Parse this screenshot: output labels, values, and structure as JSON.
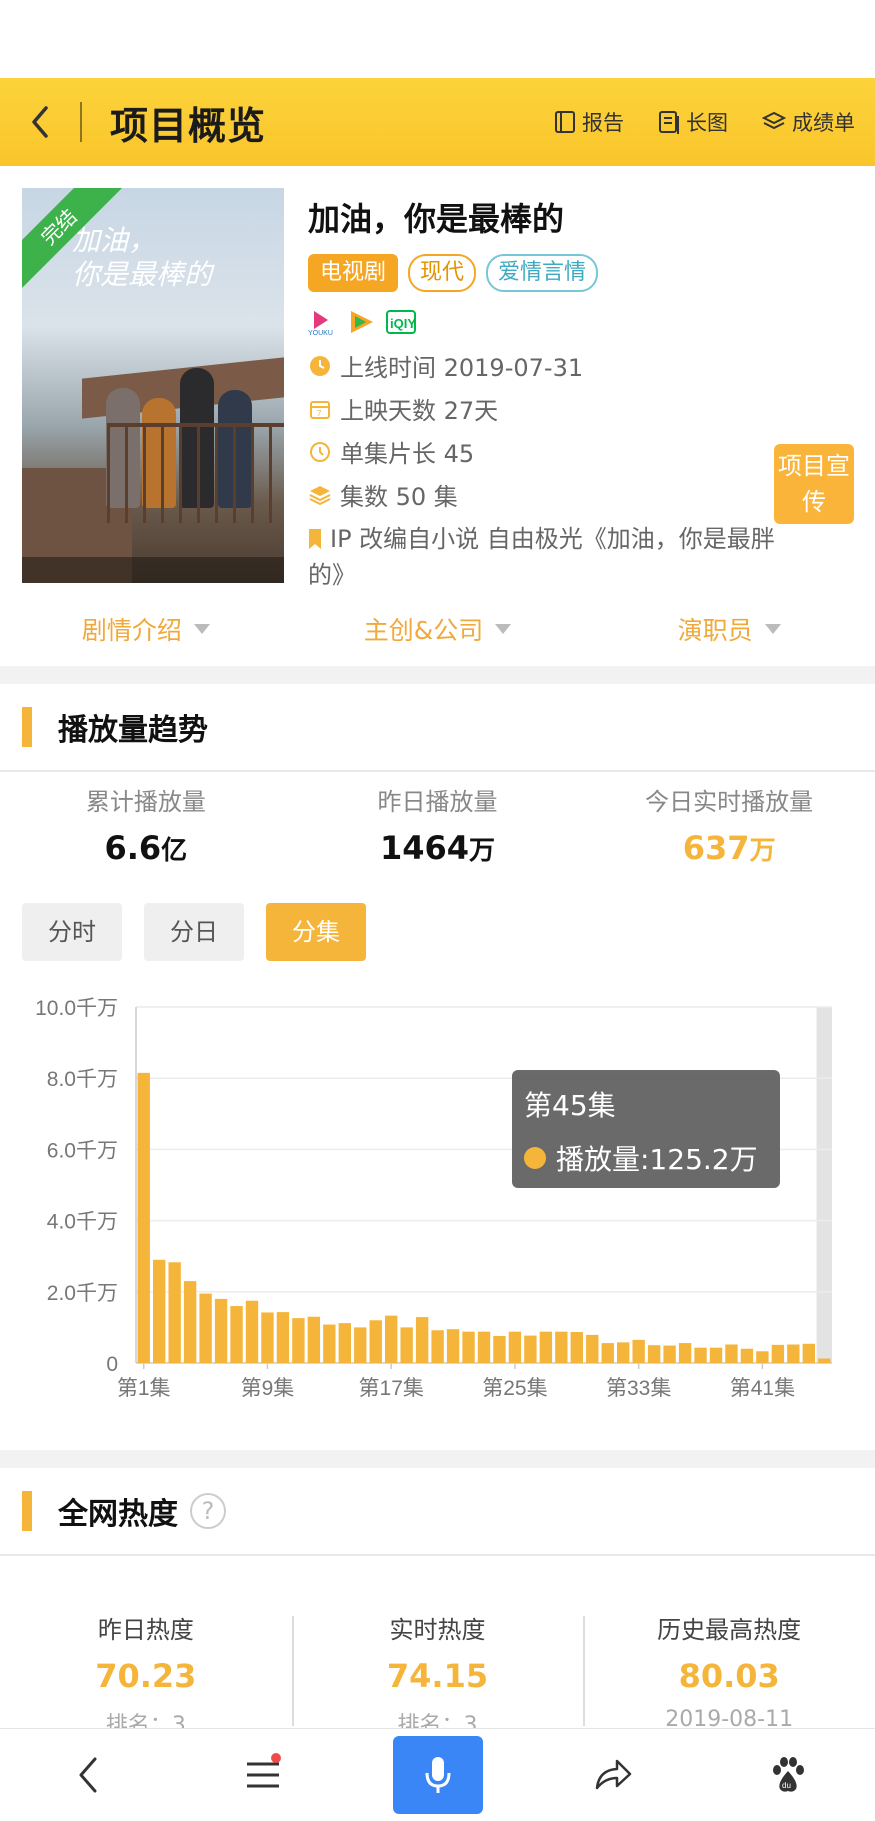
{
  "header": {
    "title": "项目概览",
    "actions": [
      {
        "label": "报告",
        "icon": "report-icon"
      },
      {
        "label": "长图",
        "icon": "long-image-icon"
      },
      {
        "label": "成绩单",
        "icon": "transcript-icon"
      }
    ]
  },
  "project": {
    "status_ribbon": "完结",
    "name": "加油，你是最棒的",
    "tags": [
      "电视剧",
      "现代",
      "爱情言情"
    ],
    "platforms": [
      "youku",
      "tencent-video",
      "iqiyi"
    ],
    "release": "上线时间 2019-07-31",
    "days": "上映天数 27天",
    "duration": "单集片长 45",
    "episodes": "集数 50 集",
    "ip": "IP 改编自小说 自由极光《加油，你是最胖的》",
    "promo": "项目宣传",
    "expanders": [
      "剧情介绍",
      "主创&公司",
      "演职员"
    ]
  },
  "playback": {
    "section_title": "播放量趋势",
    "stats": [
      {
        "label": "累计播放量",
        "value": "6.6",
        "unit": "亿"
      },
      {
        "label": "昨日播放量",
        "value": "1464",
        "unit": "万"
      },
      {
        "label": "今日实时播放量",
        "value": "637",
        "unit": "万"
      }
    ],
    "tabs": [
      "分时",
      "分日",
      "分集"
    ],
    "active_tab": "分集",
    "tooltip": {
      "title": "第45集",
      "label": "播放量:125.2万"
    }
  },
  "chart_data": {
    "type": "bar",
    "x": [
      "第1集",
      "第2集",
      "第3集",
      "第4集",
      "第5集",
      "第6集",
      "第7集",
      "第8集",
      "第9集",
      "第10集",
      "第11集",
      "第12集",
      "第13集",
      "第14集",
      "第15集",
      "第16集",
      "第17集",
      "第18集",
      "第19集",
      "第20集",
      "第21集",
      "第22集",
      "第23集",
      "第24集",
      "第25集",
      "第26集",
      "第27集",
      "第28集",
      "第29集",
      "第30集",
      "第31集",
      "第32集",
      "第33集",
      "第34集",
      "第35集",
      "第36集",
      "第37集",
      "第38集",
      "第39集",
      "第40集",
      "第41集",
      "第42集",
      "第43集",
      "第44集",
      "第45集"
    ],
    "values": [
      8150,
      2900,
      2830,
      2300,
      1950,
      1800,
      1600,
      1750,
      1420,
      1430,
      1260,
      1300,
      1080,
      1120,
      1000,
      1200,
      1330,
      1000,
      1290,
      920,
      950,
      880,
      880,
      760,
      880,
      770,
      880,
      880,
      870,
      790,
      560,
      580,
      650,
      500,
      490,
      560,
      430,
      430,
      520,
      400,
      330,
      510,
      520,
      540,
      125.2
    ],
    "unit": "万",
    "ylim": [
      0,
      10000
    ],
    "yticks": [
      0,
      2000,
      4000,
      6000,
      8000,
      10000
    ],
    "ytick_labels": [
      "0",
      "2.0千万",
      "4.0千万",
      "6.0千万",
      "8.0千万",
      "10.0千万"
    ],
    "xtick_labels": [
      "第1集",
      "第9集",
      "第17集",
      "第25集",
      "第33集",
      "第41集"
    ],
    "highlight_index": 44,
    "grid": true,
    "color": "#f5b53b"
  },
  "heat": {
    "section_title": "全网热度",
    "help": "?",
    "items": [
      {
        "label": "昨日热度",
        "value": "70.23",
        "sub": "排名：3"
      },
      {
        "label": "实时热度",
        "value": "74.15",
        "sub": "排名：3"
      },
      {
        "label": "历史最高热度",
        "value": "80.03",
        "sub": "2019-08-11"
      }
    ]
  },
  "nav": [
    "back-icon",
    "menu-icon",
    "microphone-icon",
    "share-icon",
    "baidu-paw-icon"
  ]
}
